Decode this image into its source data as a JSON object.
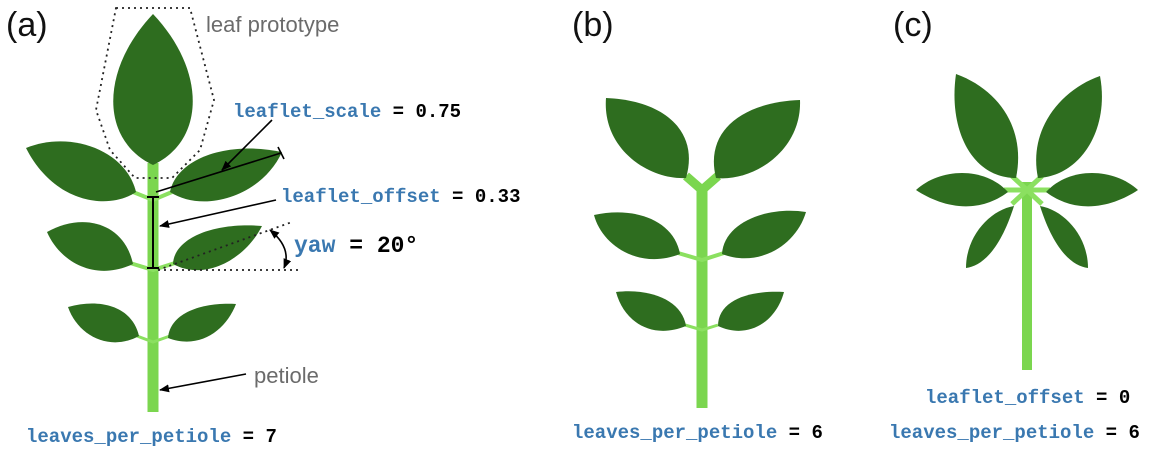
{
  "panels": {
    "a": {
      "label": "(a)",
      "leaf_prototype_label": "leaf prototype",
      "petiole_label": "petiole",
      "leaflet_scale": {
        "name": "leaflet_scale",
        "eq": " = ",
        "value": "0.75"
      },
      "leaflet_offset": {
        "name": "leaflet_offset",
        "eq": " = ",
        "value": "0.33"
      },
      "yaw": {
        "name": "yaw",
        "eq": " = ",
        "value": "20°"
      },
      "leaves_per_petiole": {
        "name": "leaves_per_petiole",
        "eq": " = ",
        "value": "7"
      }
    },
    "b": {
      "label": "(b)",
      "leaves_per_petiole": {
        "name": "leaves_per_petiole",
        "eq": " = ",
        "value": "6"
      }
    },
    "c": {
      "label": "(c)",
      "leaflet_offset": {
        "name": "leaflet_offset",
        "eq": " = ",
        "value": "0"
      },
      "leaves_per_petiole": {
        "name": "leaves_per_petiole",
        "eq": " = ",
        "value": "6"
      }
    }
  },
  "colors": {
    "leaf": "#2e6d1f",
    "petiole": "#7bd64f",
    "param_name": "#3a78b0",
    "param_value": "#000000",
    "gray_text": "#6b6b6b"
  }
}
